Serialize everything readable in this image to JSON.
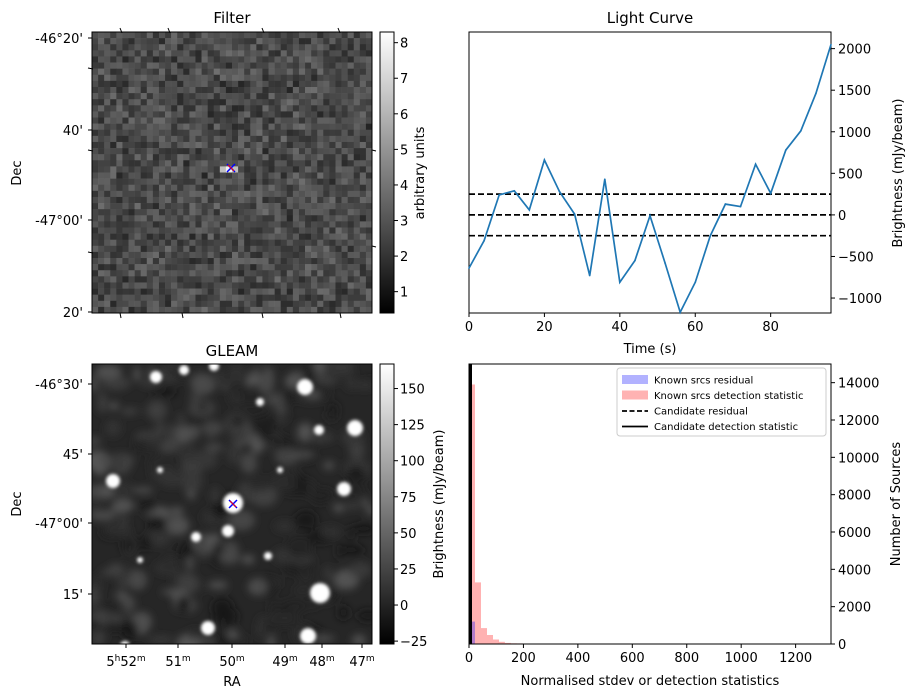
{
  "chart_data": [
    {
      "id": "filter",
      "type": "heatmap",
      "title": "Filter",
      "xlabel": "",
      "ylabel": "Dec",
      "y_ticks": [
        "-46°20'",
        "40'",
        "-47°00'",
        "20'"
      ],
      "colorbar": {
        "label": "arbitrary units",
        "range": [
          0.4,
          8.3
        ],
        "ticks": [
          "1",
          "2",
          "3",
          "4",
          "5",
          "6",
          "7",
          "8"
        ]
      },
      "markers": [
        {
          "symbol": "x",
          "color": "#ff0000"
        },
        {
          "symbol": "x",
          "color": "#0000ff"
        }
      ]
    },
    {
      "id": "light_curve",
      "type": "line",
      "title": "Light Curve",
      "xlabel": "Time (s)",
      "ylabel": "Brightness (mJy/beam)",
      "xlim": [
        0,
        96
      ],
      "ylim": [
        -1180,
        2200
      ],
      "x_ticks": [
        "0",
        "20",
        "40",
        "60",
        "80"
      ],
      "y_ticks": [
        "−1000",
        "−500",
        "0",
        "500",
        "1000",
        "1500",
        "2000"
      ],
      "x": [
        0,
        4,
        8,
        12,
        16,
        20,
        24,
        28,
        32,
        36,
        40,
        44,
        48,
        52,
        56,
        60,
        64,
        68,
        72,
        76,
        80,
        84,
        88,
        92,
        96
      ],
      "values": [
        -640,
        -310,
        240,
        290,
        60,
        660,
        280,
        10,
        -730,
        430,
        -810,
        -550,
        -10,
        -580,
        -1170,
        -810,
        -250,
        130,
        100,
        610,
        260,
        780,
        1010,
        1460,
        2050
      ],
      "color": "#1f77b4",
      "hlines": [
        250,
        0,
        -250
      ]
    },
    {
      "id": "gleam",
      "type": "heatmap",
      "title": "GLEAM",
      "xlabel": "RA",
      "ylabel": "Dec",
      "y_ticks": [
        "-46°30'",
        "45'",
        "-47°00'",
        "15'"
      ],
      "x_ticks": [
        {
          "base": "5",
          "sup1": "h",
          "mid": "52",
          "sup2": "m"
        },
        {
          "base": "",
          "sup1": "",
          "mid": "51",
          "sup2": "m"
        },
        {
          "base": "",
          "sup1": "",
          "mid": "50",
          "sup2": "m"
        },
        {
          "base": "",
          "sup1": "",
          "mid": "49",
          "sup2": "m"
        },
        {
          "base": "",
          "sup1": "",
          "mid": "48",
          "sup2": "m"
        },
        {
          "base": "",
          "sup1": "",
          "mid": "47",
          "sup2": "m"
        }
      ],
      "colorbar": {
        "label": "Brightness (mJy/beam)",
        "range": [
          -27,
          167
        ],
        "ticks": [
          "−25",
          "0",
          "25",
          "50",
          "75",
          "100",
          "125",
          "150"
        ]
      },
      "markers": [
        {
          "symbol": "x",
          "color": "#ff0000"
        },
        {
          "symbol": "x",
          "color": "#0000ff"
        }
      ]
    },
    {
      "id": "histogram",
      "type": "bar",
      "title": "",
      "xlabel": "Normalised stdev or detection statistics",
      "ylabel": "Number of Sources",
      "xlim": [
        0,
        1330
      ],
      "ylim": [
        0,
        15000
      ],
      "x_ticks": [
        "0",
        "200",
        "400",
        "600",
        "800",
        "1000",
        "1200"
      ],
      "y_ticks": [
        "0",
        "2000",
        "4000",
        "6000",
        "8000",
        "10000",
        "12000",
        "14000"
      ],
      "bin_width": 22,
      "series": [
        {
          "name": "Known srcs residual",
          "color": "#0000ff",
          "alpha": 0.3,
          "style": "patch",
          "bins": [
            0
          ],
          "values": [
            1200
          ]
        },
        {
          "name": "Known srcs detection statistic",
          "color": "#ff0000",
          "alpha": 0.3,
          "style": "patch",
          "bins": [
            0,
            22,
            44,
            66,
            88,
            110,
            132,
            154,
            176,
            198,
            220,
            242,
            330,
            420,
            520,
            780,
            1260
          ],
          "values": [
            13900,
            3300,
            850,
            480,
            240,
            120,
            60,
            40,
            30,
            20,
            15,
            12,
            10,
            8,
            8,
            8,
            8
          ]
        },
        {
          "name": "Candidate residual",
          "color": "#000000",
          "style": "dashed"
        },
        {
          "name": "Candidate detection statistic",
          "color": "#000000",
          "style": "solid"
        }
      ],
      "legend": "top-right"
    }
  ]
}
